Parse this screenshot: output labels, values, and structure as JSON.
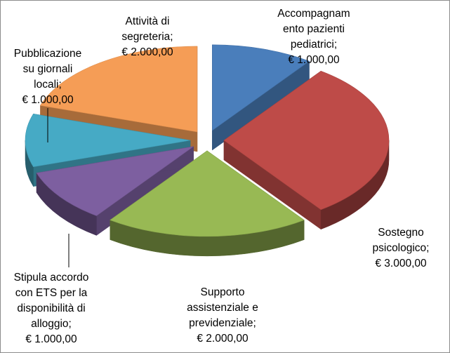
{
  "chart_data": {
    "type": "pie",
    "title": "",
    "legend": "none",
    "exploded": true,
    "three_d": true,
    "slices": [
      {
        "category": "Accompagnamento pazienti pediatrici",
        "value": 1000,
        "label_lines": [
          "Accompagnam",
          "ento pazienti",
          "pediatrici;",
          "€ 1.000,00"
        ],
        "color": "#4A7EBB"
      },
      {
        "category": "Sostegno psicologico",
        "value": 3000,
        "label_lines": [
          "Sostegno",
          "psicologico;",
          "€ 3.000,00"
        ],
        "color": "#BE4B48"
      },
      {
        "category": "Supporto assistenziale e previdenziale",
        "value": 2000,
        "label_lines": [
          "Supporto",
          "assistenziale e",
          "previdenziale;",
          "€ 2.000,00"
        ],
        "color": "#98B954"
      },
      {
        "category": "Stipula accordo con ETS per la disponibilità di alloggio",
        "value": 1000,
        "label_lines": [
          "Stipula accordo",
          "con ETS per la",
          "disponibilità di",
          "alloggio;",
          "€ 1.000,00"
        ],
        "color": "#7D5FA0"
      },
      {
        "category": "Pubblicazione su giornali locali",
        "value": 1000,
        "label_lines": [
          "Pubblicazione",
          "su giornali",
          "locali;",
          "€ 1.000,00"
        ],
        "color": "#46AAC5"
      },
      {
        "category": "Attività di segreteria",
        "value": 2000,
        "label_lines": [
          "Attività di",
          "segreteria;",
          "€ 2.000,00"
        ],
        "color": "#F59D56"
      }
    ]
  }
}
